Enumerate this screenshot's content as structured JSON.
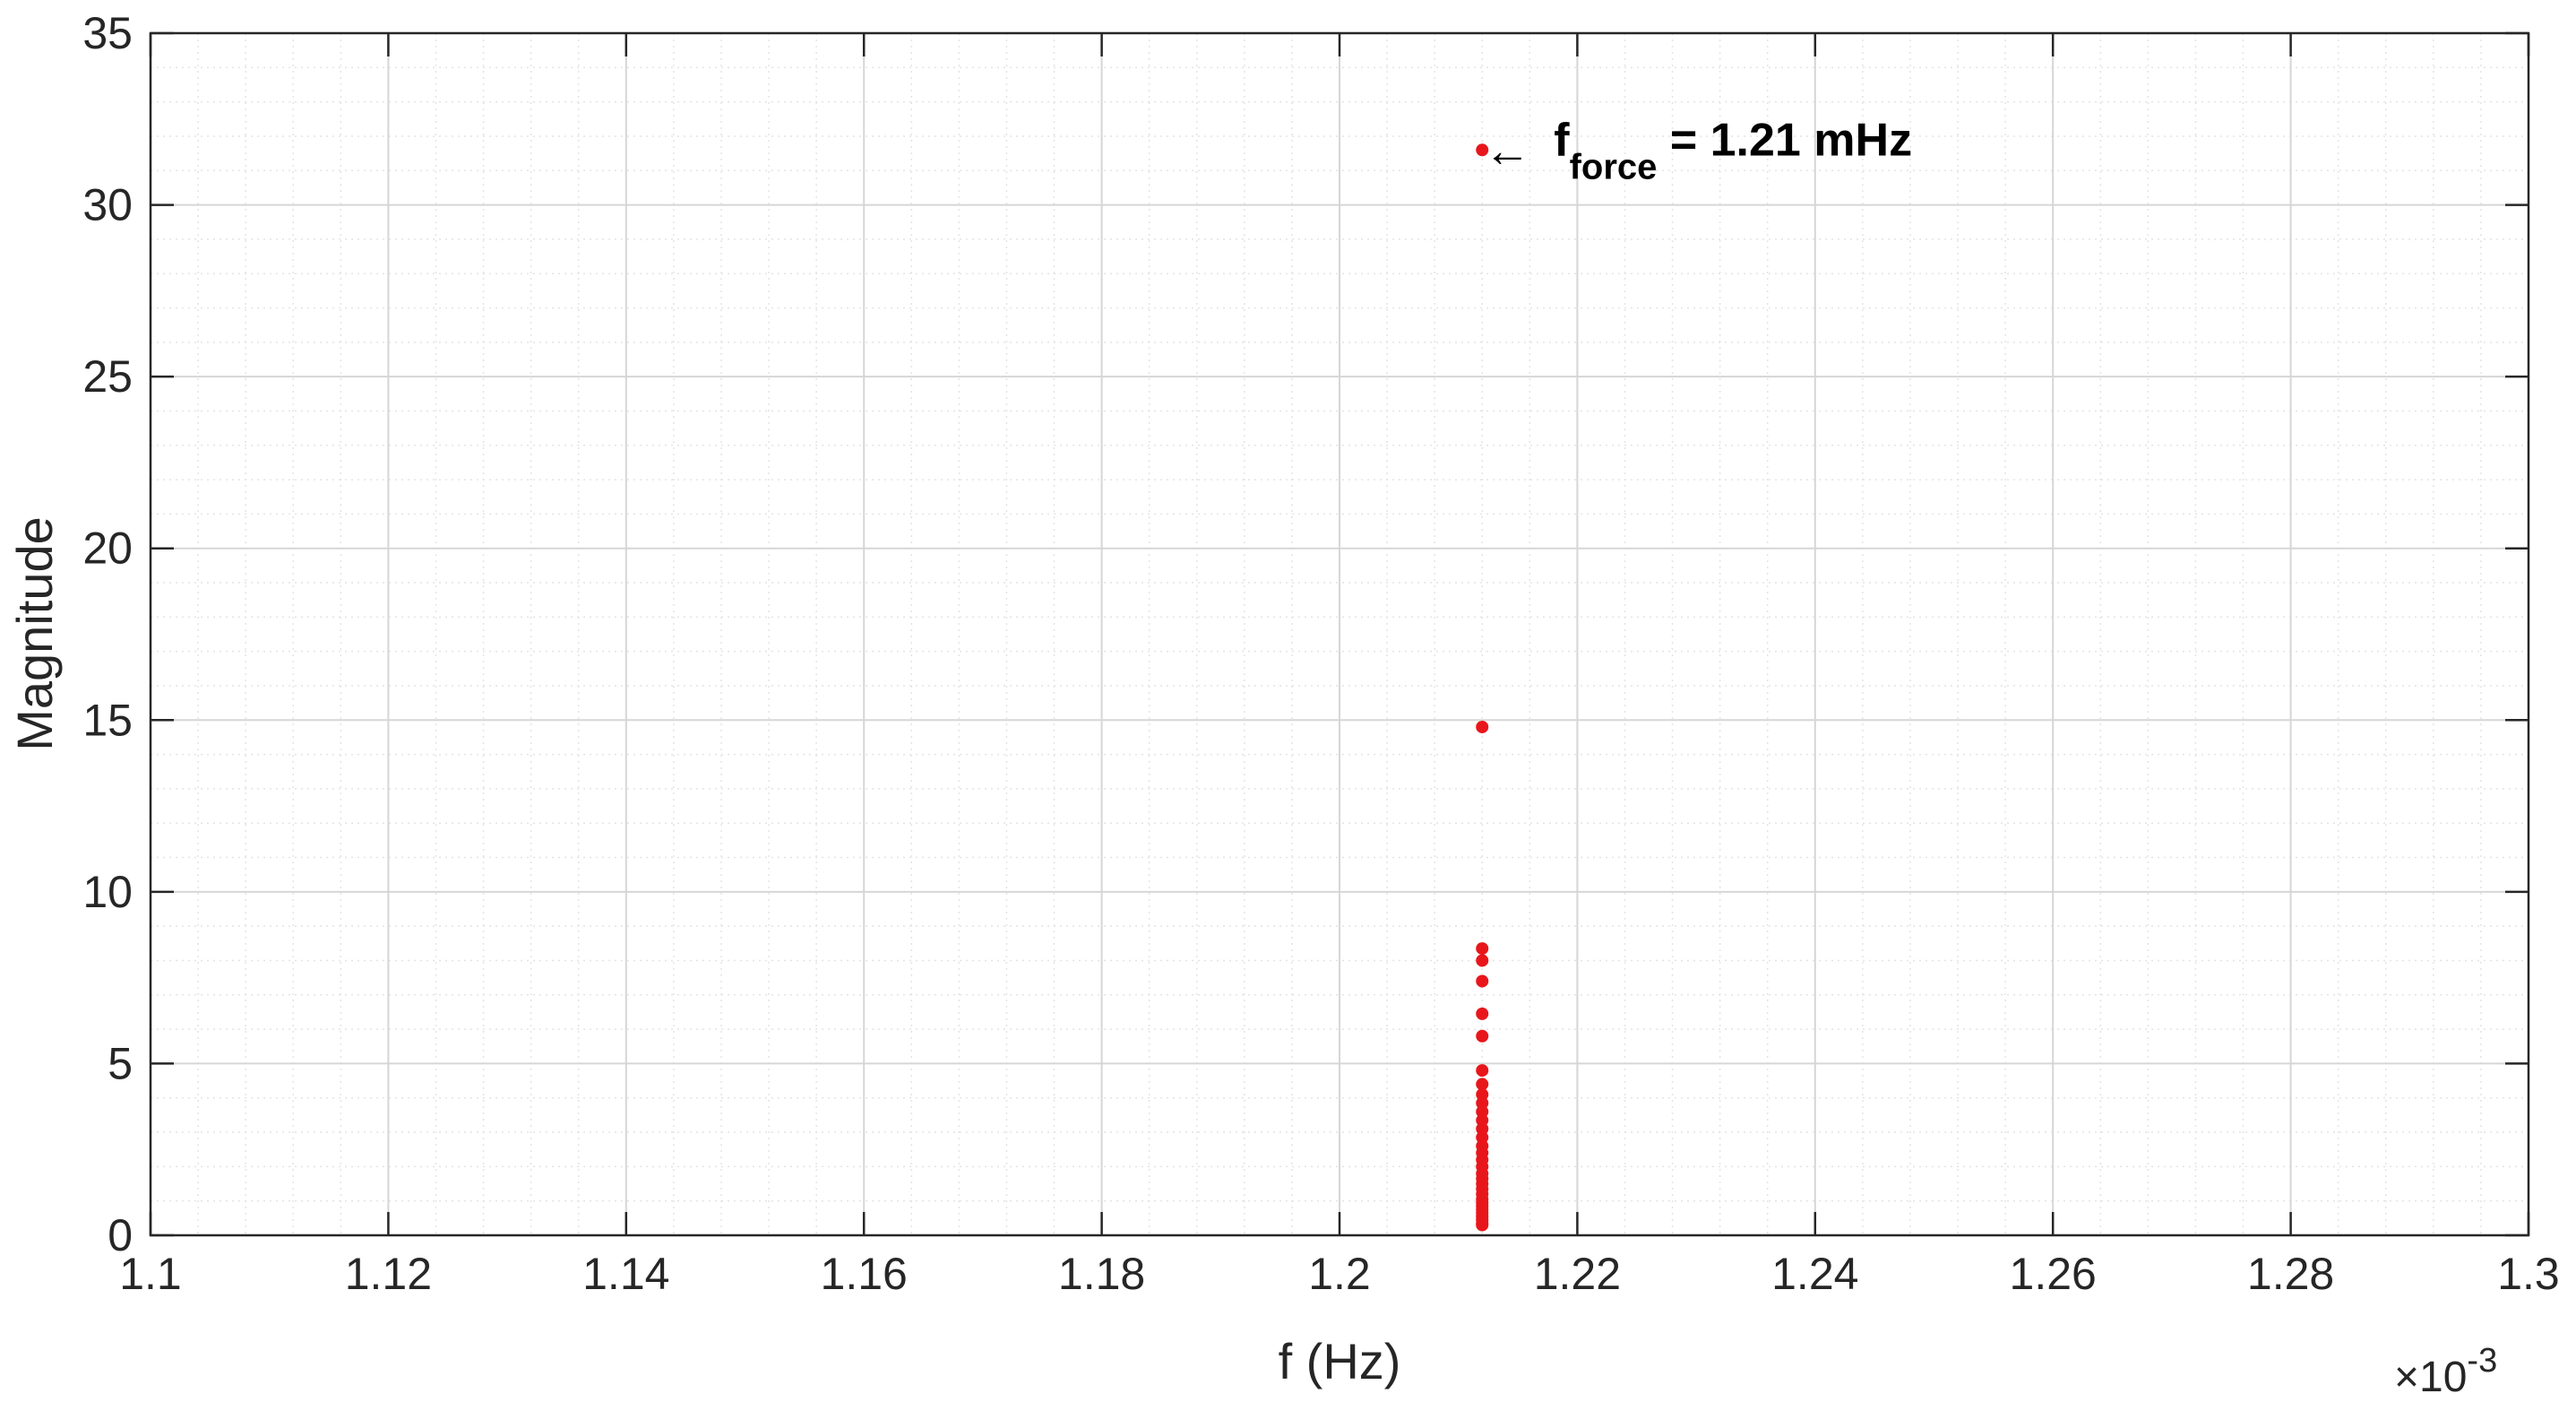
{
  "chart_data": {
    "type": "scatter",
    "xlabel": "f (Hz)",
    "ylabel": "Magnitude",
    "x_multiplier": {
      "base": "×10",
      "exponent": "-3"
    },
    "xlim": [
      1.1,
      1.3
    ],
    "ylim": [
      0,
      35
    ],
    "x_ticks": [
      "1.1",
      "1.12",
      "1.14",
      "1.16",
      "1.18",
      "1.2",
      "1.22",
      "1.24",
      "1.26",
      "1.28",
      "1.3"
    ],
    "x_tick_values": [
      1.1,
      1.12,
      1.14,
      1.16,
      1.18,
      1.2,
      1.22,
      1.24,
      1.26,
      1.28,
      1.3
    ],
    "y_ticks": [
      "0",
      "5",
      "10",
      "15",
      "20",
      "25",
      "30",
      "35"
    ],
    "y_tick_values": [
      0,
      5,
      10,
      15,
      20,
      25,
      30,
      35
    ],
    "grid": true,
    "minor_grid": true,
    "marker_color": "#e8161b",
    "series": [
      {
        "x": [
          1.212,
          1.212,
          1.212,
          1.212,
          1.212,
          1.212,
          1.212,
          1.212,
          1.212,
          1.212,
          1.212,
          1.212,
          1.212,
          1.212,
          1.212,
          1.212,
          1.212,
          1.212,
          1.212,
          1.212,
          1.212,
          1.212,
          1.212,
          1.212,
          1.212,
          1.212,
          1.212,
          1.212,
          1.212,
          1.212,
          1.212,
          1.212,
          1.212
        ],
        "y": [
          31.6,
          14.8,
          8.35,
          8.0,
          7.4,
          6.45,
          5.8,
          4.8,
          4.4,
          4.1,
          3.85,
          3.6,
          3.35,
          3.1,
          2.85,
          2.6,
          2.4,
          2.2,
          2.0,
          1.8,
          1.65,
          1.5,
          1.35,
          1.2,
          1.05,
          0.95,
          0.85,
          0.75,
          0.65,
          0.55,
          0.45,
          0.35,
          0.3
        ]
      }
    ],
    "annotation": {
      "x": 1.212,
      "y": 31.6,
      "arrow": "←",
      "main": "f",
      "subscript": "force",
      "rest": " = 1.21 mHz"
    }
  }
}
